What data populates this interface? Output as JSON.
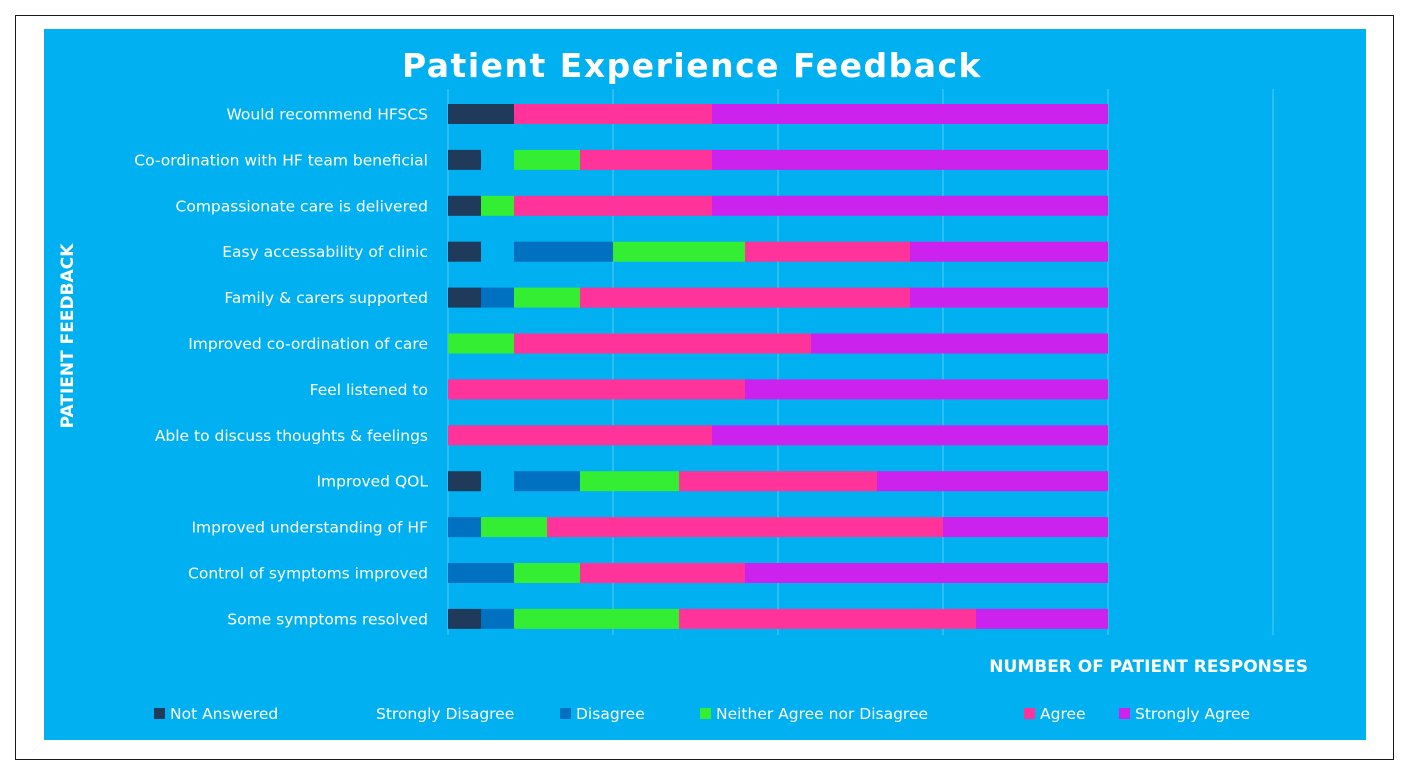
{
  "chart_data": {
    "type": "bar",
    "orientation": "horizontal",
    "stacked": true,
    "title": "Patient Experience Feedback",
    "xlabel": "NUMBER OF PATIENT RESPONSES",
    "ylabel": "PATIENT FEEDBACK",
    "xlim": [
      0,
      25
    ],
    "grid": true,
    "legend_position": "bottom",
    "categories": [
      "Would recommend HFSCS",
      "Co-ordination with HF team beneficial",
      "Compassionate care is delivered",
      "Easy accessability of clinic",
      "Family & carers supported",
      "Improved co-ordination of care",
      "Feel listened to",
      "Able to discuss thoughts & feelings",
      "Improved QOL",
      "Improved understanding of HF",
      "Control of symptoms improved",
      "Some symptoms resolved"
    ],
    "series": [
      {
        "name": "Not Answered",
        "color": "#1f3a5a",
        "values": [
          2,
          1,
          1,
          1,
          1,
          0,
          0,
          0,
          1,
          0,
          0,
          1
        ]
      },
      {
        "name": "Strongly Disagree",
        "color": "#00b0f0",
        "values": [
          0,
          1,
          0,
          1,
          0,
          0,
          0,
          0,
          1,
          0,
          0,
          0
        ]
      },
      {
        "name": "Disagree",
        "color": "#0070c0",
        "values": [
          0,
          0,
          0,
          3,
          1,
          0,
          0,
          0,
          2,
          1,
          2,
          1
        ]
      },
      {
        "name": "Neither Agree nor Disagree",
        "color": "#33ee33",
        "values": [
          0,
          2,
          1,
          4,
          2,
          2,
          0,
          0,
          3,
          2,
          2,
          5
        ]
      },
      {
        "name": "Agree",
        "color": "#ff3399",
        "values": [
          6,
          4,
          6,
          5,
          10,
          9,
          9,
          8,
          6,
          12,
          5,
          9
        ]
      },
      {
        "name": "Strongly Agree",
        "color": "#cc22ee",
        "values": [
          12,
          12,
          12,
          6,
          6,
          9,
          11,
          12,
          7,
          5,
          11,
          4
        ]
      }
    ]
  }
}
